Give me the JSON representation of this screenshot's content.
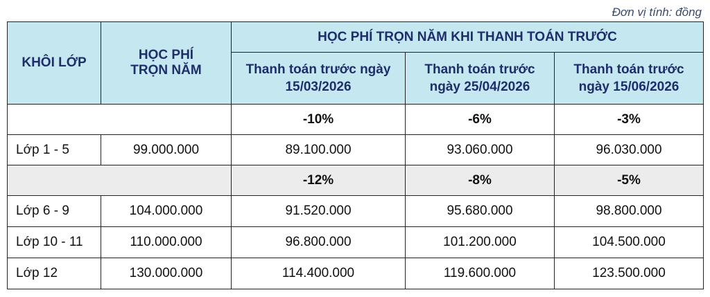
{
  "unit_note": "Đơn vị tính: đồng",
  "header": {
    "grade": "KHÔI LỚP",
    "annual_fee_line1": "HỌC PHÍ",
    "annual_fee_line2": "TRỌN NĂM",
    "prepay_group": "HỌC PHÍ TRỌN NĂM KHI THANH TOÁN TRƯỚC",
    "prepay_cols": [
      {
        "line1": "Thanh toán trước ngày",
        "line2": "15/03/2026"
      },
      {
        "line1": "Thanh toán trước",
        "line2": "ngày 25/04/2026"
      },
      {
        "line1": "Thanh toán trước",
        "line2": "ngày 15/06/2026"
      }
    ]
  },
  "discount_rows": [
    {
      "discounts": [
        "-10%",
        "-6%",
        "-3%"
      ]
    },
    {
      "discounts": [
        "-12%",
        "-8%",
        "-5%"
      ]
    }
  ],
  "rows": [
    {
      "grade": "Lớp 1 - 5",
      "annual_fee": "99.000.000",
      "prepay": [
        "89.100.000",
        "93.060.000",
        "96.030.000"
      ]
    },
    {
      "grade": "Lớp 6 - 9",
      "annual_fee": "104.000.000",
      "prepay": [
        "91.520.000",
        "95.680.000",
        "98.800.000"
      ]
    },
    {
      "grade": "Lớp 10 - 11",
      "annual_fee": "110.000.000",
      "prepay": [
        "96.800.000",
        "101.200.000",
        "104.500.000"
      ]
    },
    {
      "grade": "Lớp 12",
      "annual_fee": "130.000.000",
      "prepay": [
        "114.400.000",
        "119.600.000",
        "123.500.000"
      ]
    }
  ]
}
